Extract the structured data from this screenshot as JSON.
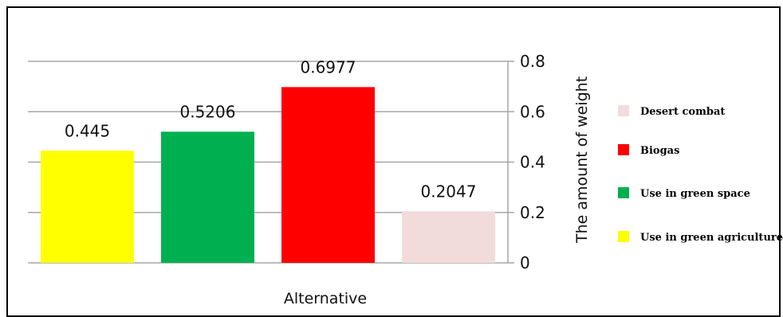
{
  "chart_data": {
    "type": "bar",
    "categories": [
      "Use in green agriculture",
      "Use in green space",
      "Biogas",
      "Desert combat"
    ],
    "values": [
      0.445,
      0.5206,
      0.6977,
      0.2047
    ],
    "value_labels": [
      "0.445",
      "0.5206",
      "0.6977",
      "0.2047"
    ],
    "colors": [
      "#ffff00",
      "#00b050",
      "#ff0000",
      "#f2dcdb"
    ],
    "xlabel": "Alternative",
    "ylabel": "The amount of weight",
    "ylim": [
      0,
      0.8
    ],
    "yticks": [
      0,
      0.2,
      0.4,
      0.6,
      0.8
    ],
    "ytick_labels": [
      "0",
      "0.2",
      "0.4",
      "0.6",
      "0.8"
    ],
    "y_axis_side": "right",
    "grid": true,
    "legend": {
      "position": "right",
      "entries": [
        {
          "label": "Desert combat",
          "color": "#f2dcdb"
        },
        {
          "label": "Biogas",
          "color": "#ff0000"
        },
        {
          "label": "Use in green space",
          "color": "#00b050"
        },
        {
          "label": "Use in green agriculture",
          "color": "#ffff00"
        }
      ]
    }
  }
}
